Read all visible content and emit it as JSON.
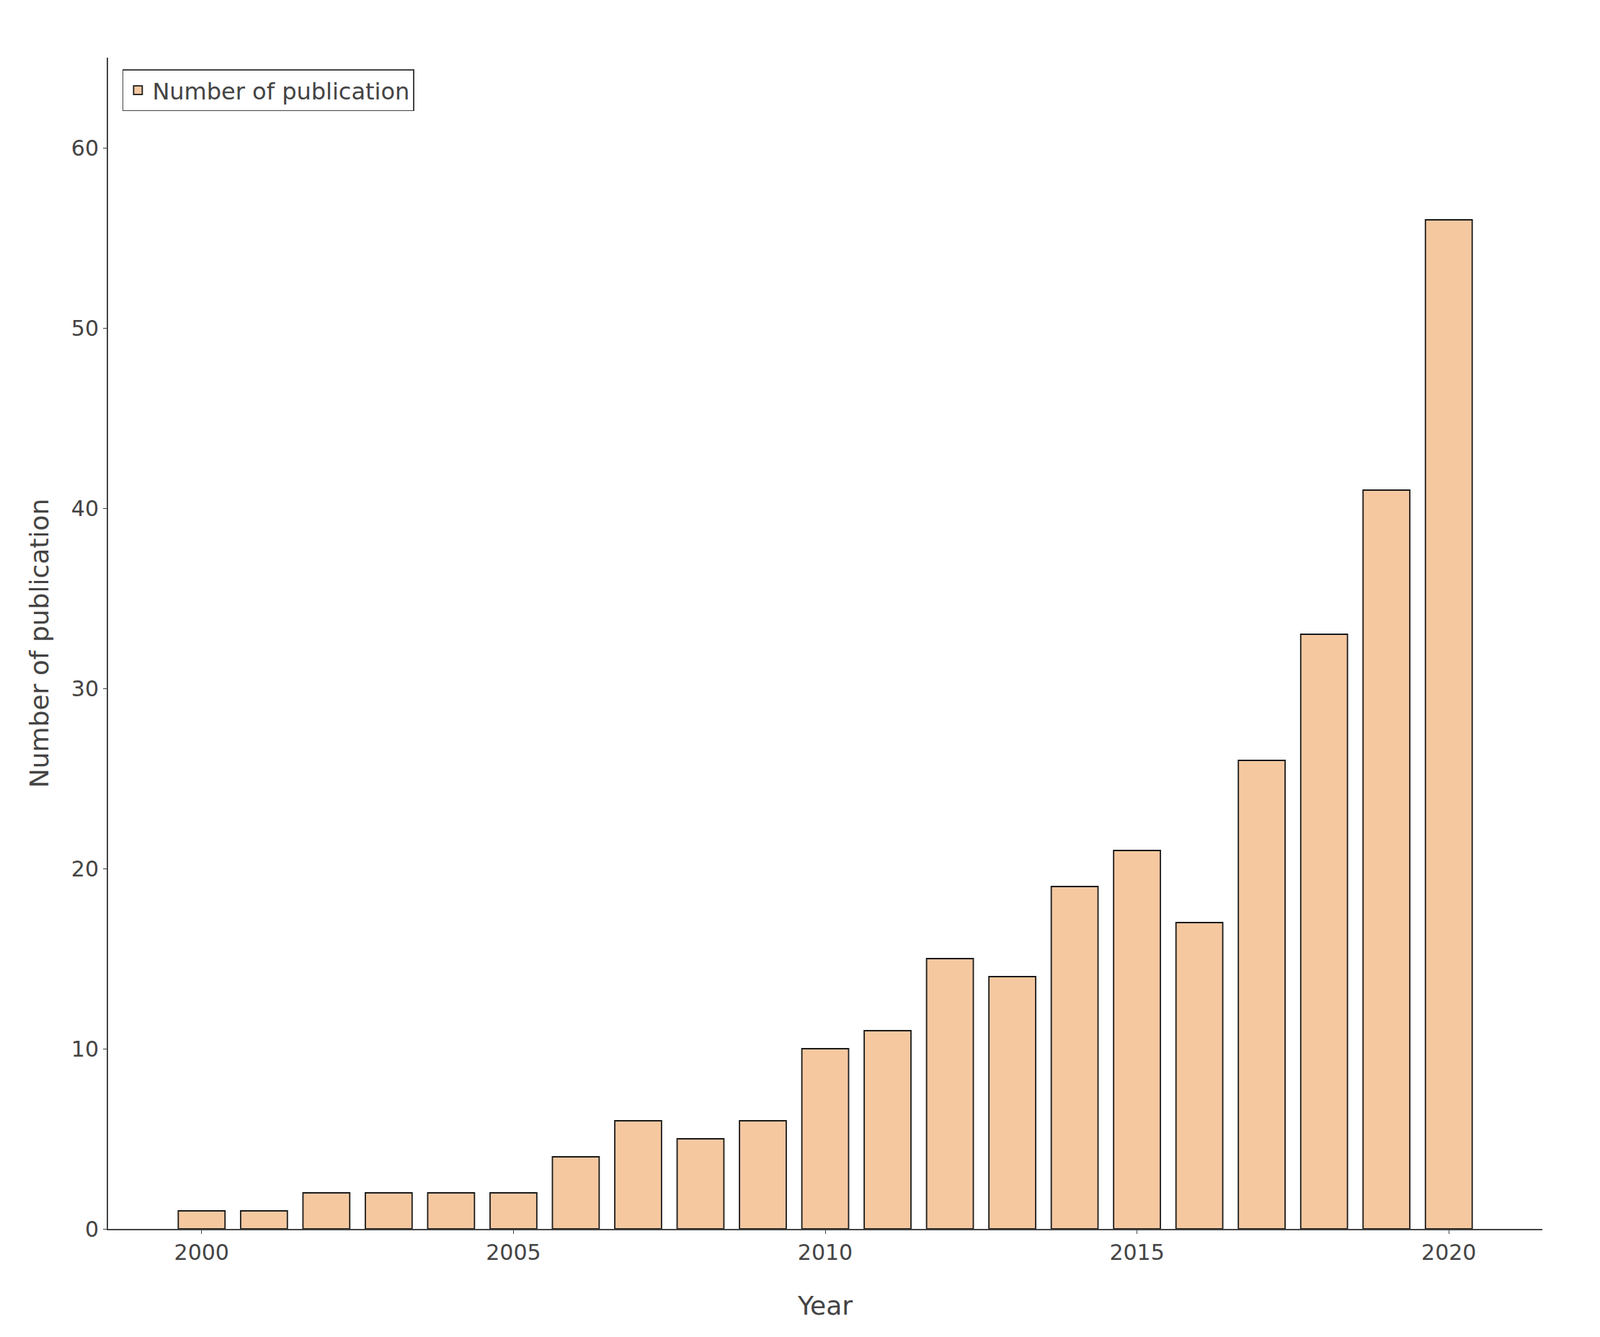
{
  "chart_data": {
    "type": "bar",
    "x": [
      2000,
      2001,
      2002,
      2003,
      2004,
      2005,
      2006,
      2007,
      2008,
      2009,
      2010,
      2011,
      2012,
      2013,
      2014,
      2015,
      2016,
      2017,
      2018,
      2019,
      2020
    ],
    "series": [
      {
        "name": "Number of publication",
        "color": "#F5C8A0",
        "values": [
          1,
          1,
          2,
          2,
          2,
          2,
          4,
          6,
          5,
          6,
          10,
          11,
          15,
          14,
          19,
          21,
          17,
          26,
          33,
          41,
          56
        ]
      }
    ],
    "xlabel": "Year",
    "ylabel": "Number of publication",
    "xlim": [
      1998.5,
      2021.5
    ],
    "xticks": [
      2000,
      2005,
      2010,
      2015,
      2020
    ],
    "ylim": [
      0,
      65
    ],
    "yticks": [
      0,
      10,
      20,
      30,
      40,
      50,
      60
    ],
    "grid": false,
    "legend": "upper left"
  }
}
